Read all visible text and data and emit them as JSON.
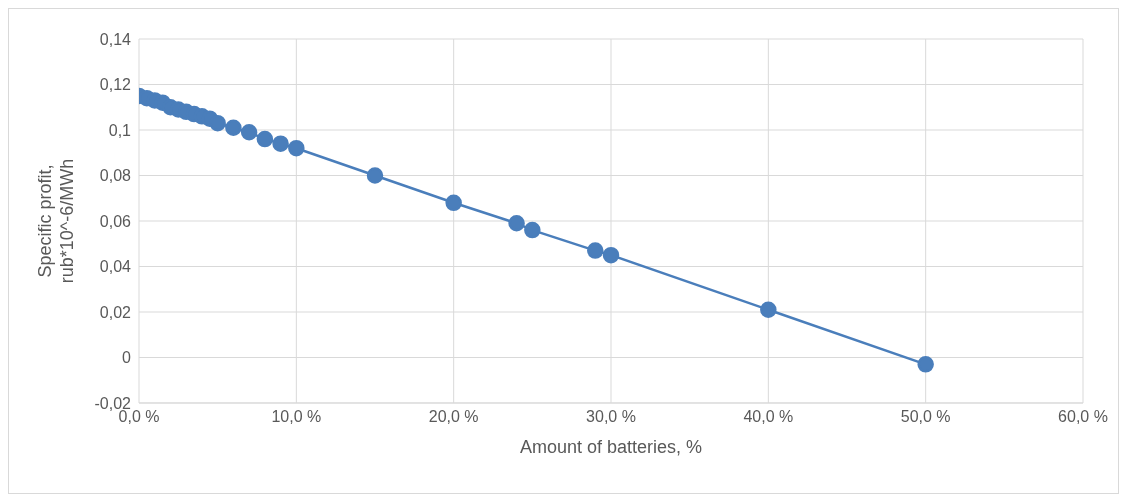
{
  "chart_data": {
    "type": "line",
    "xlabel": "Amount  of batteries, %",
    "ylabel": "Specific profit, rub*10^-6/MWh",
    "x": [
      0,
      0.5,
      1,
      1.5,
      2,
      2.5,
      3,
      3.5,
      4,
      4.5,
      5,
      6,
      7,
      8,
      9,
      10,
      15,
      20,
      24,
      25,
      29,
      30,
      40,
      50
    ],
    "series": [
      {
        "color": "#4a7ebb",
        "values": [
          0.115,
          0.114,
          0.113,
          0.112,
          0.11,
          0.109,
          0.108,
          0.107,
          0.106,
          0.105,
          0.103,
          0.101,
          0.099,
          0.096,
          0.094,
          0.092,
          0.08,
          0.068,
          0.059,
          0.056,
          0.047,
          0.045,
          0.021,
          -0.003
        ]
      }
    ],
    "xlim": [
      0,
      60
    ],
    "xticks": [
      {
        "value": 0,
        "label": "0,0 %"
      },
      {
        "value": 10,
        "label": "10,0 %"
      },
      {
        "value": 20,
        "label": "20,0 %"
      },
      {
        "value": 30,
        "label": "30,0 %"
      },
      {
        "value": 40,
        "label": "40,0 %"
      },
      {
        "value": 50,
        "label": "50,0 %"
      },
      {
        "value": 60,
        "label": "60,0 %"
      }
    ],
    "ylim": [
      -0.02,
      0.14
    ],
    "yticks": [
      {
        "value": -0.02,
        "label": "-0,02"
      },
      {
        "value": 0,
        "label": "0"
      },
      {
        "value": 0.02,
        "label": "0,02"
      },
      {
        "value": 0.04,
        "label": "0,04"
      },
      {
        "value": 0.06,
        "label": "0,06"
      },
      {
        "value": 0.08,
        "label": "0,08"
      },
      {
        "value": 0.1,
        "label": "0,1"
      },
      {
        "value": 0.12,
        "label": "0,12"
      },
      {
        "value": 0.14,
        "label": "0,14"
      }
    ],
    "grid": true,
    "marker": "circle",
    "line_style": "solid"
  }
}
